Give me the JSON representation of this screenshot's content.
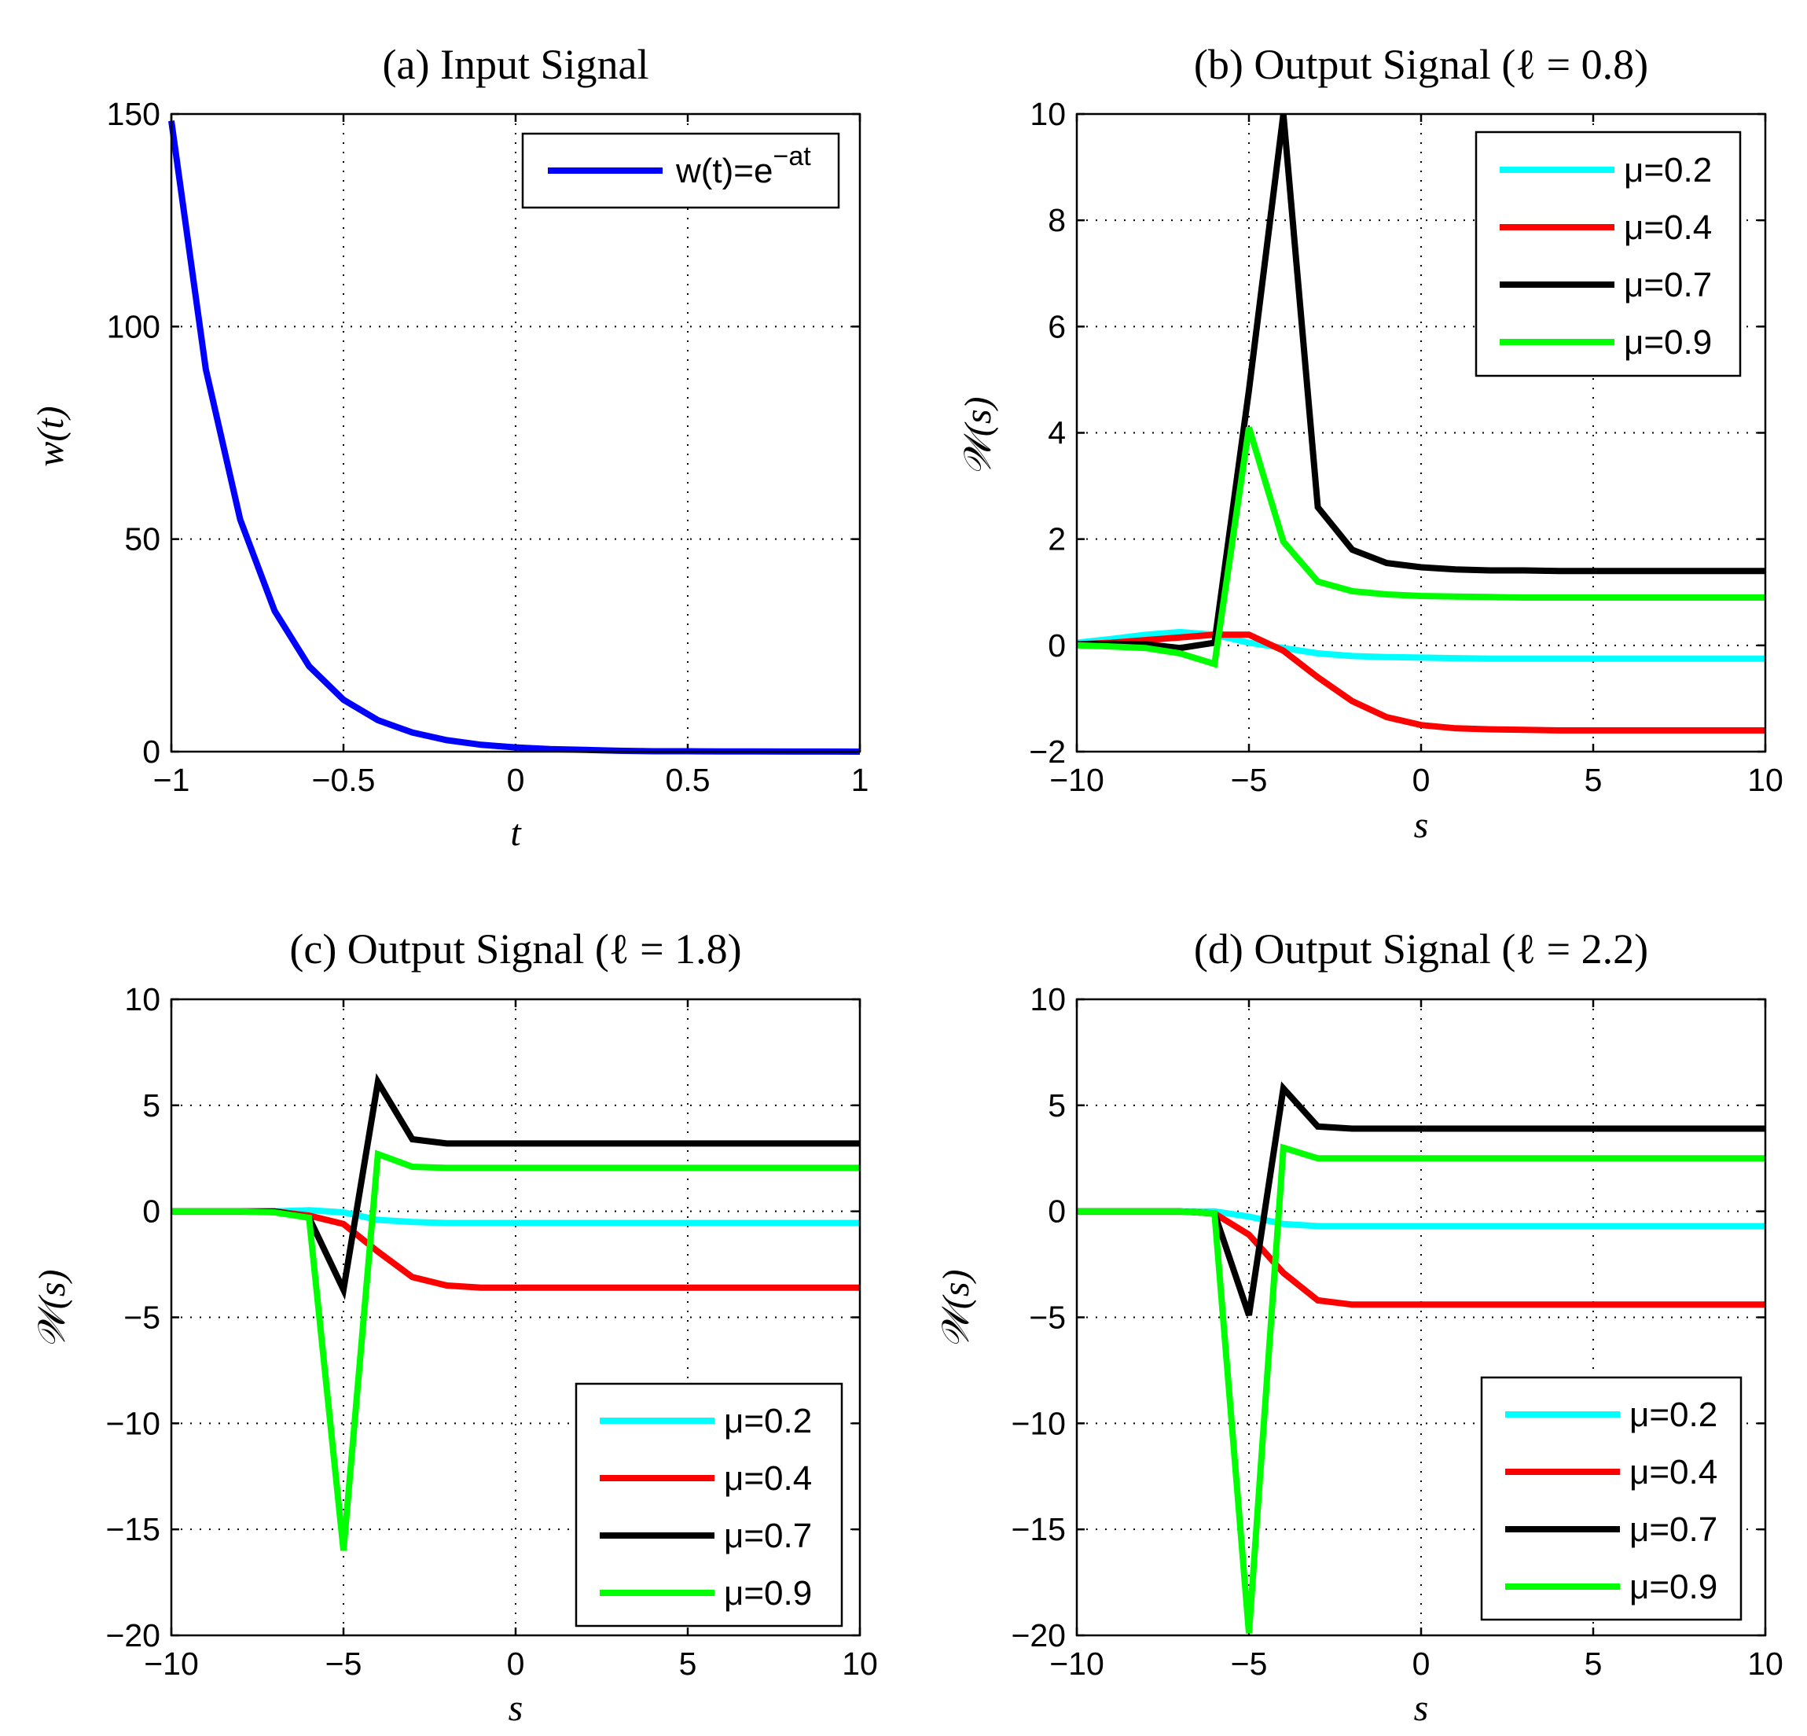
{
  "chart_data": [
    {
      "id": "a",
      "type": "line",
      "title": "(a) Input Signal",
      "xlabel": "t",
      "ylabel": "w(t)",
      "xlim": [
        -1,
        1
      ],
      "ylim": [
        0,
        150
      ],
      "xticks": [
        -1,
        -0.5,
        0,
        0.5,
        1
      ],
      "xtick_labels": [
        "−1",
        "−0.5",
        "0",
        "0.5",
        "1"
      ],
      "yticks": [
        0,
        50,
        100,
        150
      ],
      "ytick_labels": [
        "0",
        "50",
        "100",
        "150"
      ],
      "grid": true,
      "legend_position": "top-right",
      "series": [
        {
          "name": "w(t)=e",
          "name_superscript": "−at",
          "color": "#0000ff",
          "x": [
            -1,
            -0.9,
            -0.8,
            -0.7,
            -0.6,
            -0.5,
            -0.4,
            -0.3,
            -0.2,
            -0.1,
            0,
            0.1,
            0.2,
            0.3,
            0.4,
            0.5,
            0.6,
            0.7,
            0.8,
            0.9,
            1
          ],
          "y": [
            148.4,
            90.0,
            54.6,
            33.1,
            20.1,
            12.2,
            7.4,
            4.5,
            2.7,
            1.6,
            1.0,
            0.6,
            0.4,
            0.2,
            0.1,
            0.1,
            0.05,
            0.03,
            0.02,
            0.01,
            0.0
          ]
        }
      ]
    },
    {
      "id": "b",
      "type": "line",
      "title": "(b) Output Signal (ℓ = 0.8)",
      "xlabel": "s",
      "ylabel": "𝒲(s)",
      "xlim": [
        -10,
        10
      ],
      "ylim": [
        -2,
        10
      ],
      "xticks": [
        -10,
        -5,
        0,
        5,
        10
      ],
      "xtick_labels": [
        "−10",
        "−5",
        "0",
        "5",
        "10"
      ],
      "yticks": [
        -2,
        0,
        2,
        4,
        6,
        8,
        10
      ],
      "ytick_labels": [
        "−2",
        "0",
        "2",
        "4",
        "6",
        "8",
        "10"
      ],
      "grid": true,
      "legend_position": "top-right",
      "series": [
        {
          "name": "μ=0.2",
          "color": "#00ffff",
          "x": [
            -10,
            -9,
            -8,
            -7,
            -6,
            -5,
            -4,
            -3,
            -2,
            -1,
            0,
            1,
            2,
            3,
            4,
            5,
            6,
            7,
            8,
            9,
            10
          ],
          "y": [
            0.05,
            0.12,
            0.2,
            0.25,
            0.2,
            0.05,
            -0.05,
            -0.15,
            -0.2,
            -0.22,
            -0.23,
            -0.24,
            -0.25,
            -0.25,
            -0.25,
            -0.25,
            -0.25,
            -0.25,
            -0.25,
            -0.25,
            -0.25
          ]
        },
        {
          "name": "μ=0.4",
          "color": "#ff0000",
          "x": [
            -10,
            -9,
            -8,
            -7,
            -6,
            -5,
            -4,
            -3,
            -2,
            -1,
            0,
            1,
            2,
            3,
            4,
            5,
            6,
            7,
            8,
            9,
            10
          ],
          "y": [
            0.02,
            0.05,
            0.1,
            0.15,
            0.2,
            0.2,
            -0.1,
            -0.6,
            -1.05,
            -1.35,
            -1.5,
            -1.56,
            -1.58,
            -1.59,
            -1.6,
            -1.6,
            -1.6,
            -1.6,
            -1.6,
            -1.6,
            -1.6
          ]
        },
        {
          "name": "μ=0.7",
          "color": "#000000",
          "x": [
            -10,
            -9,
            -8,
            -7,
            -6,
            -5,
            -4,
            -3,
            -2,
            -1,
            0,
            1,
            2,
            3,
            4,
            5,
            6,
            7,
            8,
            9,
            10
          ],
          "y": [
            0.02,
            0.03,
            0.02,
            -0.05,
            0.05,
            4.8,
            10.0,
            2.6,
            1.8,
            1.55,
            1.47,
            1.43,
            1.41,
            1.41,
            1.4,
            1.4,
            1.4,
            1.4,
            1.4,
            1.4,
            1.4
          ]
        },
        {
          "name": "μ=0.9",
          "color": "#00ff00",
          "x": [
            -10,
            -9,
            -8,
            -7,
            -6,
            -5,
            -4,
            -3,
            -2,
            -1,
            0,
            1,
            2,
            3,
            4,
            5,
            6,
            7,
            8,
            9,
            10
          ],
          "y": [
            0.0,
            -0.02,
            -0.05,
            -0.15,
            -0.35,
            4.1,
            1.95,
            1.2,
            1.02,
            0.96,
            0.93,
            0.92,
            0.91,
            0.9,
            0.9,
            0.9,
            0.9,
            0.9,
            0.9,
            0.9,
            0.9
          ]
        }
      ]
    },
    {
      "id": "c",
      "type": "line",
      "title": "(c) Output Signal (ℓ = 1.8)",
      "xlabel": "s",
      "ylabel": "𝒲(s)",
      "xlim": [
        -10,
        10
      ],
      "ylim": [
        -20,
        10
      ],
      "xticks": [
        -10,
        -5,
        0,
        5,
        10
      ],
      "xtick_labels": [
        "−10",
        "−5",
        "0",
        "5",
        "10"
      ],
      "yticks": [
        -20,
        -15,
        -10,
        -5,
        0,
        5,
        10
      ],
      "ytick_labels": [
        "−20",
        "−15",
        "−10",
        "−5",
        "0",
        "5",
        "10"
      ],
      "grid": true,
      "legend_position": "bottom-right",
      "series": [
        {
          "name": "μ=0.2",
          "color": "#00ffff",
          "x": [
            -10,
            -9,
            -8,
            -7,
            -6,
            -5,
            -4,
            -3,
            -2,
            -1,
            0,
            1,
            2,
            3,
            4,
            5,
            6,
            7,
            8,
            9,
            10
          ],
          "y": [
            0,
            0,
            0,
            0,
            0.05,
            -0.05,
            -0.4,
            -0.5,
            -0.55,
            -0.55,
            -0.55,
            -0.55,
            -0.55,
            -0.55,
            -0.55,
            -0.55,
            -0.55,
            -0.55,
            -0.55,
            -0.55,
            -0.55
          ]
        },
        {
          "name": "μ=0.4",
          "color": "#ff0000",
          "x": [
            -10,
            -9,
            -8,
            -7,
            -6,
            -5,
            -4,
            -3,
            -2,
            -1,
            0,
            1,
            2,
            3,
            4,
            5,
            6,
            7,
            8,
            9,
            10
          ],
          "y": [
            0,
            0,
            0,
            0,
            -0.2,
            -0.6,
            -1.9,
            -3.1,
            -3.5,
            -3.6,
            -3.6,
            -3.6,
            -3.6,
            -3.6,
            -3.6,
            -3.6,
            -3.6,
            -3.6,
            -3.6,
            -3.6,
            -3.6
          ]
        },
        {
          "name": "μ=0.7",
          "color": "#000000",
          "x": [
            -10,
            -9,
            -8,
            -7,
            -6,
            -5,
            -4,
            -3,
            -2,
            -1,
            0,
            1,
            2,
            3,
            4,
            5,
            6,
            7,
            8,
            9,
            10
          ],
          "y": [
            0,
            0,
            0,
            0,
            -0.3,
            -3.7,
            6.1,
            3.4,
            3.2,
            3.2,
            3.2,
            3.2,
            3.2,
            3.2,
            3.2,
            3.2,
            3.2,
            3.2,
            3.2,
            3.2,
            3.2
          ]
        },
        {
          "name": "μ=0.9",
          "color": "#00ff00",
          "x": [
            -10,
            -9,
            -8,
            -7,
            -6,
            -5,
            -4,
            -3,
            -2,
            -1,
            0,
            1,
            2,
            3,
            4,
            5,
            6,
            7,
            8,
            9,
            10
          ],
          "y": [
            0,
            0,
            0,
            -0.05,
            -0.3,
            -16.0,
            2.7,
            2.1,
            2.05,
            2.05,
            2.05,
            2.05,
            2.05,
            2.05,
            2.05,
            2.05,
            2.05,
            2.05,
            2.05,
            2.05,
            2.05
          ]
        }
      ]
    },
    {
      "id": "d",
      "type": "line",
      "title": "(d) Output Signal (ℓ = 2.2)",
      "xlabel": "s",
      "ylabel": "𝒲(s)",
      "xlim": [
        -10,
        10
      ],
      "ylim": [
        -20,
        10
      ],
      "xticks": [
        -10,
        -5,
        0,
        5,
        10
      ],
      "xtick_labels": [
        "−10",
        "−5",
        "0",
        "5",
        "10"
      ],
      "yticks": [
        -20,
        -15,
        -10,
        -5,
        0,
        5,
        10
      ],
      "ytick_labels": [
        "−20",
        "−15",
        "−10",
        "−5",
        "0",
        "5",
        "10"
      ],
      "grid": true,
      "legend_position": "bottom-right",
      "series": [
        {
          "name": "μ=0.2",
          "color": "#00ffff",
          "x": [
            -10,
            -9,
            -8,
            -7,
            -6,
            -5,
            -4,
            -3,
            -2,
            -1,
            0,
            1,
            2,
            3,
            4,
            5,
            6,
            7,
            8,
            9,
            10
          ],
          "y": [
            0,
            0,
            0,
            0,
            0,
            -0.25,
            -0.6,
            -0.7,
            -0.7,
            -0.7,
            -0.7,
            -0.7,
            -0.7,
            -0.7,
            -0.7,
            -0.7,
            -0.7,
            -0.7,
            -0.7,
            -0.7,
            -0.7
          ]
        },
        {
          "name": "μ=0.4",
          "color": "#ff0000",
          "x": [
            -10,
            -9,
            -8,
            -7,
            -6,
            -5,
            -4,
            -3,
            -2,
            -1,
            0,
            1,
            2,
            3,
            4,
            5,
            6,
            7,
            8,
            9,
            10
          ],
          "y": [
            0,
            0,
            0,
            0,
            -0.1,
            -1.1,
            -2.9,
            -4.2,
            -4.4,
            -4.4,
            -4.4,
            -4.4,
            -4.4,
            -4.4,
            -4.4,
            -4.4,
            -4.4,
            -4.4,
            -4.4,
            -4.4,
            -4.4
          ]
        },
        {
          "name": "μ=0.7",
          "color": "#000000",
          "x": [
            -10,
            -9,
            -8,
            -7,
            -6,
            -5,
            -4,
            -3,
            -2,
            -1,
            0,
            1,
            2,
            3,
            4,
            5,
            6,
            7,
            8,
            9,
            10
          ],
          "y": [
            0,
            0,
            0,
            0,
            -0.1,
            -4.9,
            5.8,
            4.0,
            3.9,
            3.9,
            3.9,
            3.9,
            3.9,
            3.9,
            3.9,
            3.9,
            3.9,
            3.9,
            3.9,
            3.9,
            3.9
          ]
        },
        {
          "name": "μ=0.9",
          "color": "#00ff00",
          "x": [
            -10,
            -9,
            -8,
            -7,
            -6,
            -5,
            -4,
            -3,
            -2,
            -1,
            0,
            1,
            2,
            3,
            4,
            5,
            6,
            7,
            8,
            9,
            10
          ],
          "y": [
            0,
            0,
            0,
            0,
            -0.1,
            -19.9,
            3.0,
            2.5,
            2.5,
            2.5,
            2.5,
            2.5,
            2.5,
            2.5,
            2.5,
            2.5,
            2.5,
            2.5,
            2.5,
            2.5,
            2.5
          ]
        }
      ]
    }
  ]
}
